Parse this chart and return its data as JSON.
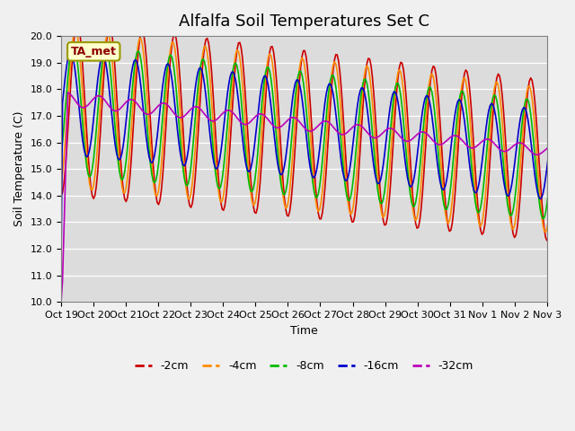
{
  "title": "Alfalfa Soil Temperatures Set C",
  "xlabel": "Time",
  "ylabel": "Soil Temperature (C)",
  "ylim": [
    10.0,
    20.0
  ],
  "yticks": [
    10.0,
    11.0,
    12.0,
    13.0,
    14.0,
    15.0,
    16.0,
    17.0,
    18.0,
    19.0,
    20.0
  ],
  "background_color": "#f0f0f0",
  "plot_bg_color": "#dcdcdc",
  "line_colors": {
    "-2cm": "#cc0000",
    "-4cm": "#ff8c00",
    "-8cm": "#00bb00",
    "-16cm": "#0000cc",
    "-32cm": "#bb00bb"
  },
  "legend_labels": [
    "-2cm",
    "-4cm",
    "-8cm",
    "-16cm",
    "-32cm"
  ],
  "xtick_labels": [
    "Oct 19",
    "Oct 20",
    "Oct 21",
    "Oct 22",
    "Oct 23",
    "Oct 24",
    "Oct 25",
    "Oct 26",
    "Oct 27",
    "Oct 28",
    "Oct 29",
    "Oct 30",
    "Oct 31",
    "Nov 1",
    "Nov 2",
    "Nov 3"
  ],
  "ta_met_label": "TA_met",
  "title_fontsize": 13,
  "axis_label_fontsize": 9,
  "tick_fontsize": 8
}
